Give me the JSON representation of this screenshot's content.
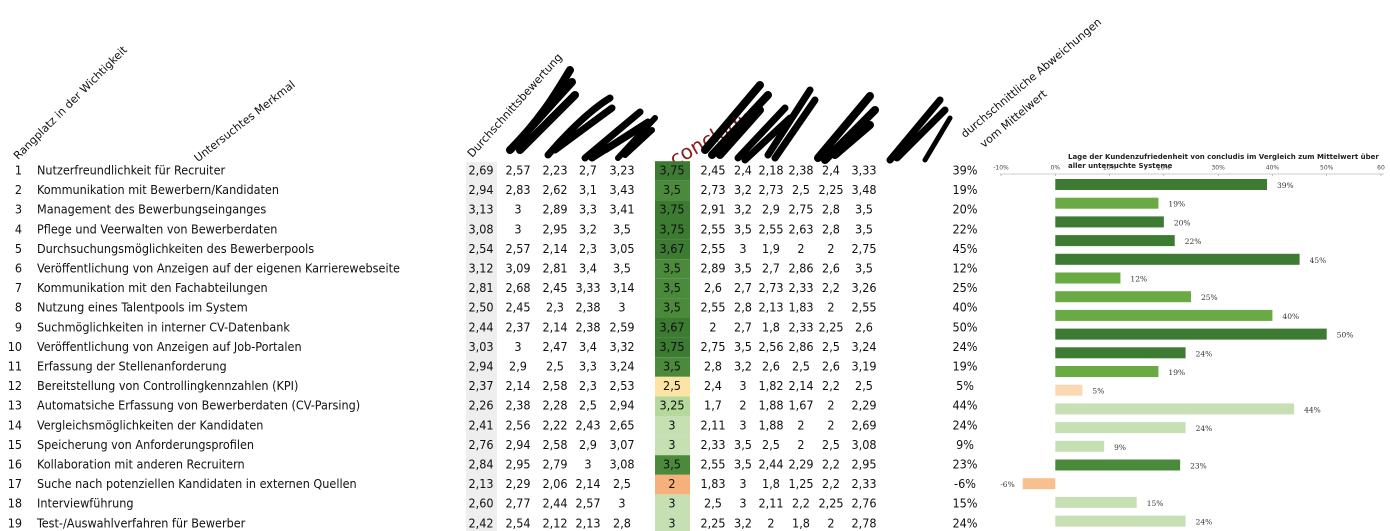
{
  "header": {
    "rank": "Rangplatz in der Wichtigkeit",
    "feature": "Untersuchtes Merkmal",
    "average": "Durchschnittsbewertung",
    "concludis": "concludis",
    "deviation": [
      "durchschnittliche Abweichungen",
      "vom Mittelwert"
    ]
  },
  "table": {
    "concludis_colors": [
      "#3d7a32",
      "#4a8a3a",
      "#3d7a32",
      "#3d7a32",
      "#3d7a32",
      "#4a8a3a",
      "#4a8a3a",
      "#4a8a3a",
      "#3d7a32",
      "#3d7a32",
      "#4a8a3a",
      "#fde4a4",
      "#b5d99c",
      "#c6e0b4",
      "#c6e0b4",
      "#4a8a3a",
      "#f6b07b",
      "#c6e0b4",
      "#c6e0b4"
    ],
    "rows": [
      [
        "1",
        "Nutzerfreundlichkeit für Recruiter",
        "2,69",
        "2,57",
        "2,23",
        "2,7",
        "3,23",
        "3,75",
        "2,45",
        "2,4",
        "2,18",
        "2,38",
        "2,4",
        "3,33",
        "39%"
      ],
      [
        "2",
        "Kommunikation mit Bewerbern/Kandidaten",
        "2,94",
        "2,83",
        "2,62",
        "3,1",
        "3,43",
        "3,5",
        "2,73",
        "3,2",
        "2,73",
        "2,5",
        "2,25",
        "3,48",
        "19%"
      ],
      [
        "3",
        "Management des Bewerbungseinganges",
        "3,13",
        "3",
        "2,89",
        "3,3",
        "3,41",
        "3,75",
        "2,91",
        "3,2",
        "2,9",
        "2,75",
        "2,8",
        "3,5",
        "20%"
      ],
      [
        "4",
        "Pflege und Veerwalten von Bewerberdaten",
        "3,08",
        "3",
        "2,95",
        "3,2",
        "3,5",
        "3,75",
        "2,55",
        "3,5",
        "2,55",
        "2,63",
        "2,8",
        "3,5",
        "22%"
      ],
      [
        "5",
        "Durchsuchungsmöglichkeiten des Bewerberpools",
        "2,54",
        "2,57",
        "2,14",
        "2,3",
        "3,05",
        "3,67",
        "2,55",
        "3",
        "1,9",
        "2",
        "2",
        "2,75",
        "45%"
      ],
      [
        "6",
        "Veröffentlichung von Anzeigen auf der eigenen Karrierewebseite",
        "3,12",
        "3,09",
        "2,81",
        "3,4",
        "3,5",
        "3,5",
        "2,89",
        "3,5",
        "2,7",
        "2,86",
        "2,6",
        "3,5",
        "12%"
      ],
      [
        "7",
        "Kommunikation mit den Fachabteilungen",
        "2,81",
        "2,68",
        "2,45",
        "3,33",
        "3,14",
        "3,5",
        "2,6",
        "2,7",
        "2,73",
        "2,33",
        "2,2",
        "3,26",
        "25%"
      ],
      [
        "8",
        "Nutzung eines Talentpools im System",
        "2,50",
        "2,45",
        "2,3",
        "2,38",
        "3",
        "3,5",
        "2,55",
        "2,8",
        "2,13",
        "1,83",
        "2",
        "2,55",
        "40%"
      ],
      [
        "9",
        "Suchmöglichkeiten in interner CV-Datenbank",
        "2,44",
        "2,37",
        "2,14",
        "2,38",
        "2,59",
        "3,67",
        "2",
        "2,7",
        "1,8",
        "2,33",
        "2,25",
        "2,6",
        "50%"
      ],
      [
        "10",
        "Veröffentlichung von Anzeigen auf Job-Portalen",
        "3,03",
        "3",
        "2,47",
        "3,4",
        "3,32",
        "3,75",
        "2,75",
        "3,5",
        "2,56",
        "2,86",
        "2,5",
        "3,24",
        "24%"
      ],
      [
        "11",
        "Erfassung der Stellenanforderung",
        "2,94",
        "2,9",
        "2,5",
        "3,3",
        "3,24",
        "3,5",
        "2,8",
        "3,2",
        "2,6",
        "2,5",
        "2,6",
        "3,19",
        "19%"
      ],
      [
        "12",
        "Bereitstellung von Controllingkennzahlen (KPI)",
        "2,37",
        "2,14",
        "2,58",
        "2,3",
        "2,53",
        "2,5",
        "2,4",
        "3",
        "1,82",
        "2,14",
        "2,2",
        "2,5",
        "5%"
      ],
      [
        "13",
        "Automatsiche Erfassung von Bewerberdaten (CV-Parsing)",
        "2,26",
        "2,38",
        "2,28",
        "2,5",
        "2,94",
        "3,25",
        "1,7",
        "2",
        "1,88",
        "1,67",
        "2",
        "2,29",
        "44%"
      ],
      [
        "14",
        "Vergleichsmöglichkeiten der Kandidaten",
        "2,41",
        "2,56",
        "2,22",
        "2,43",
        "2,65",
        "3",
        "2,11",
        "3",
        "1,88",
        "2",
        "2",
        "2,69",
        "24%"
      ],
      [
        "15",
        "Speicherung von Anforderungsprofilen",
        "2,76",
        "2,94",
        "2,58",
        "2,9",
        "3,07",
        "3",
        "2,33",
        "3,5",
        "2,5",
        "2",
        "2,5",
        "3,08",
        "9%"
      ],
      [
        "16",
        "Kollaboration mit anderen Recruitern",
        "2,84",
        "2,95",
        "2,79",
        "3",
        "3,08",
        "3,5",
        "2,55",
        "3,5",
        "2,44",
        "2,29",
        "2,2",
        "2,95",
        "23%"
      ],
      [
        "17",
        "Suche nach potenziellen Kandidaten in externen Quellen",
        "2,13",
        "2,29",
        "2,06",
        "2,14",
        "2,5",
        "2",
        "1,83",
        "3",
        "1,8",
        "1,25",
        "2,2",
        "2,33",
        "-6%"
      ],
      [
        "18",
        "Interviewführung",
        "2,60",
        "2,77",
        "2,44",
        "2,57",
        "3",
        "3",
        "2,5",
        "3",
        "2,11",
        "2,2",
        "2,25",
        "2,76",
        "15%"
      ],
      [
        "19",
        "Test-/Auswahlverfahren für Bewerber",
        "2,42",
        "2,54",
        "2,12",
        "2,13",
        "2,8",
        "3",
        "2,25",
        "3,2",
        "2",
        "1,8",
        "2",
        "2,78",
        "24%"
      ]
    ]
  },
  "chart_data": {
    "type": "bar",
    "orientation": "horizontal",
    "title": "Lage der Kundenzufriedenheit  von concludis im Vergleich zum Mittelwert über aller untersuchte Systeme",
    "categories": [
      "1",
      "2",
      "3",
      "4",
      "5",
      "6",
      "7",
      "8",
      "9",
      "10",
      "11",
      "12",
      "13",
      "14",
      "15",
      "16",
      "17",
      "18",
      "19"
    ],
    "values": [
      39,
      19,
      20,
      22,
      45,
      12,
      25,
      40,
      50,
      24,
      19,
      5,
      44,
      24,
      9,
      23,
      -6,
      15,
      24
    ],
    "value_labels": [
      "39%",
      "19%",
      "20%",
      "22%",
      "45%",
      "12%",
      "25%",
      "40%",
      "50%",
      "24%",
      "19%",
      "5%",
      "44%",
      "24%",
      "9%",
      "23%",
      "-6%",
      "15%",
      "24%"
    ],
    "colors": [
      "#3d7a32",
      "#6aaa45",
      "#3d7a32",
      "#3d7a32",
      "#3d7a32",
      "#6aaa45",
      "#6aaa45",
      "#6aaa45",
      "#3d7a32",
      "#3d7a32",
      "#6aaa45",
      "#fbd8b4",
      "#c6e0b4",
      "#c6e0b4",
      "#c6e0b4",
      "#4a8a3a",
      "#f8c08e",
      "#c6e0b4",
      "#c6e0b4"
    ],
    "xlim": [
      -10,
      60
    ],
    "xticks": [
      {
        "value": -10,
        "label": "-10%"
      },
      {
        "value": 0,
        "label": "0%"
      },
      {
        "value": 10,
        "label": "10%"
      },
      {
        "value": 20,
        "label": "20%"
      },
      {
        "value": 30,
        "label": "30%"
      },
      {
        "value": 40,
        "label": "40%"
      },
      {
        "value": 50,
        "label": "50%"
      },
      {
        "value": 60,
        "label": "60"
      }
    ]
  }
}
